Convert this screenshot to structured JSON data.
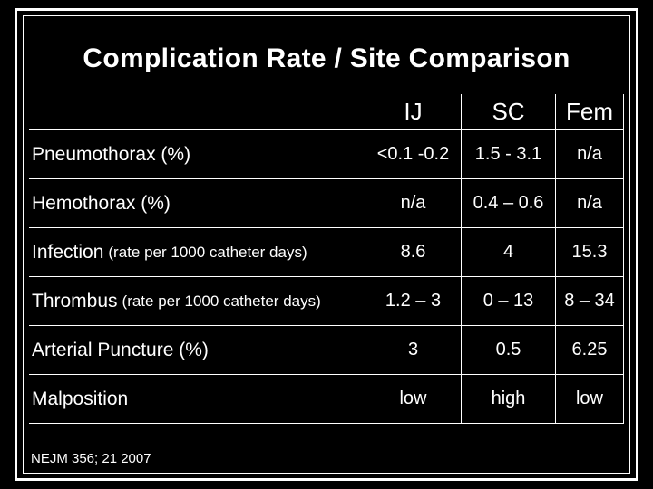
{
  "slide": {
    "title": "Complication Rate / Site Comparison",
    "citation": "NEJM 356; 21 2007"
  },
  "colors": {
    "background": "#000000",
    "text": "#ffffff",
    "border": "#ffffff"
  },
  "table": {
    "columns": [
      "",
      "IJ",
      "SC",
      "Fem"
    ],
    "rows": [
      {
        "label": "Pneumothorax (%)",
        "label_suffix": "",
        "values": [
          "<0.1 -0.2",
          "1.5 - 3.1",
          "n/a"
        ]
      },
      {
        "label": "Hemothorax (%)",
        "label_suffix": "",
        "values": [
          "n/a",
          "0.4 – 0.6",
          "n/a"
        ]
      },
      {
        "label": "Infection",
        "label_suffix": "(rate per 1000 catheter days)",
        "values": [
          "8.6",
          "4",
          "15.3"
        ]
      },
      {
        "label": "Thrombus",
        "label_suffix": "(rate per 1000 catheter days)",
        "values": [
          "1.2 – 3",
          "0 – 13",
          "8 – 34"
        ]
      },
      {
        "label": "Arterial Puncture (%)",
        "label_suffix": "",
        "values": [
          "3",
          "0.5",
          "6.25"
        ]
      },
      {
        "label": "Malposition",
        "label_suffix": "",
        "values": [
          "low",
          "high",
          "low"
        ]
      }
    ]
  }
}
